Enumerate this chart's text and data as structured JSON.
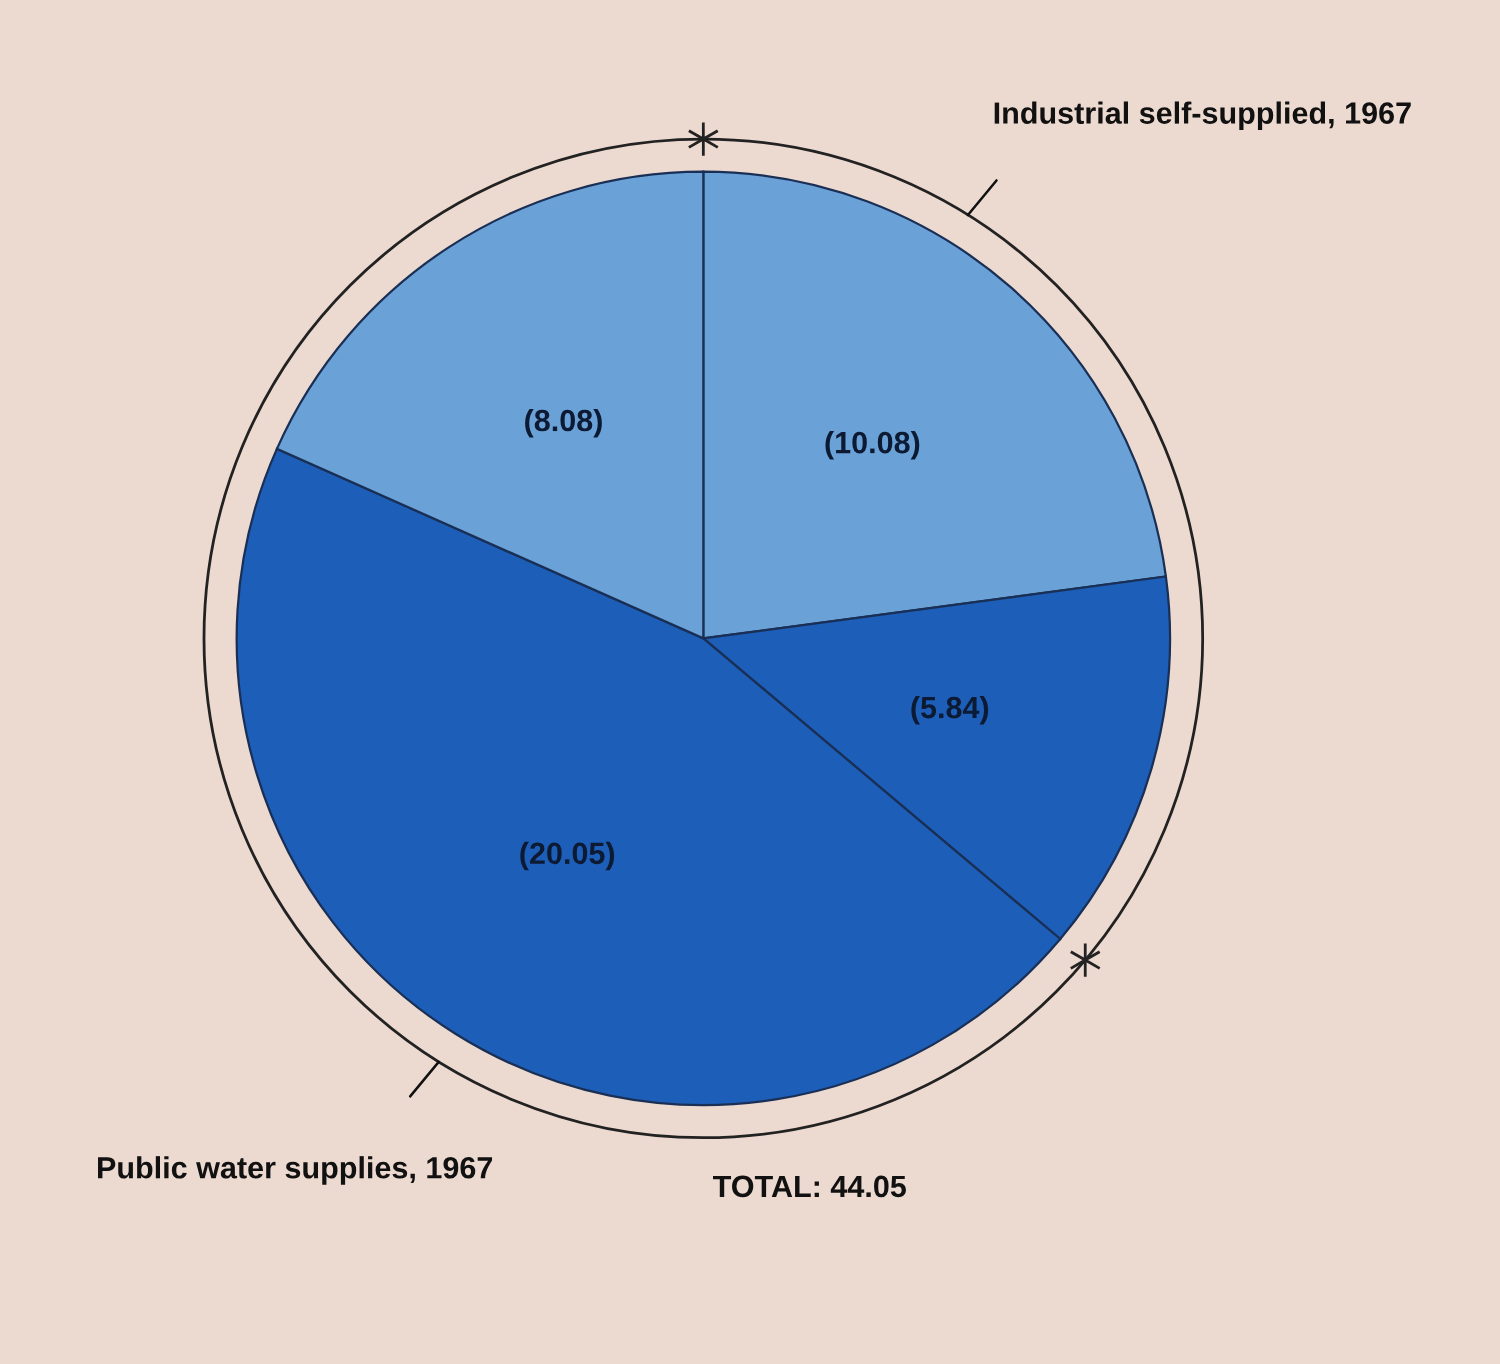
{
  "chart_data": {
    "type": "pie",
    "categories": [
      null,
      null,
      null,
      null
    ],
    "values": [
      10.08,
      5.84,
      20.05,
      8.08
    ],
    "value_labels": [
      "(10.08)",
      "(5.84)",
      "(20.05)",
      "(8.08)"
    ],
    "colors": [
      "#6aa2d8",
      "#1d5fb8",
      "#1d5fb8",
      "#6aa2d8"
    ],
    "annotations": [
      "Industrial self-supplied, 1967",
      "Public water supplies, 1967",
      "TOTAL: 44.05"
    ],
    "legend": false
  }
}
